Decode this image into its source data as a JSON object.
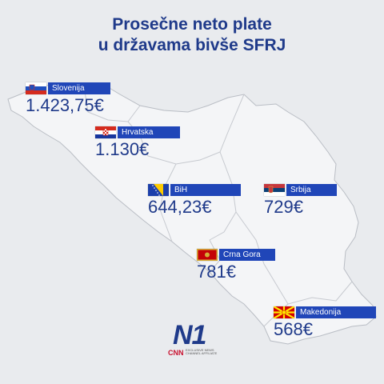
{
  "title": {
    "line1": "Prosečne neto plate",
    "line2": "u državama bivše SFRJ"
  },
  "countries": [
    {
      "name": "Slovenija",
      "value": "1.423,75€",
      "flag": "slovenia-flag-icon"
    },
    {
      "name": "Hrvatska",
      "value": "1.130€",
      "flag": "croatia-flag-icon"
    },
    {
      "name": "BiH",
      "value": "644,23€",
      "flag": "bih-flag-icon"
    },
    {
      "name": "Srbija",
      "value": "729€",
      "flag": "serbia-flag-icon"
    },
    {
      "name": "Crna Gora",
      "value": "781€",
      "flag": "montenegro-flag-icon"
    },
    {
      "name": "Makedonija",
      "value": "568€",
      "flag": "macedonia-flag-icon"
    }
  ],
  "logo": {
    "brand": "N1",
    "partner": "CNN",
    "partner_sub": "EXCLUSIVE NEWS CHANNEL AFFILIATE"
  },
  "colors": {
    "title": "#1f3a8a",
    "tag": "#2046b8",
    "map_fill": "#f4f5f7",
    "map_border": "#b9bdc4",
    "background": "#e9ebee"
  }
}
